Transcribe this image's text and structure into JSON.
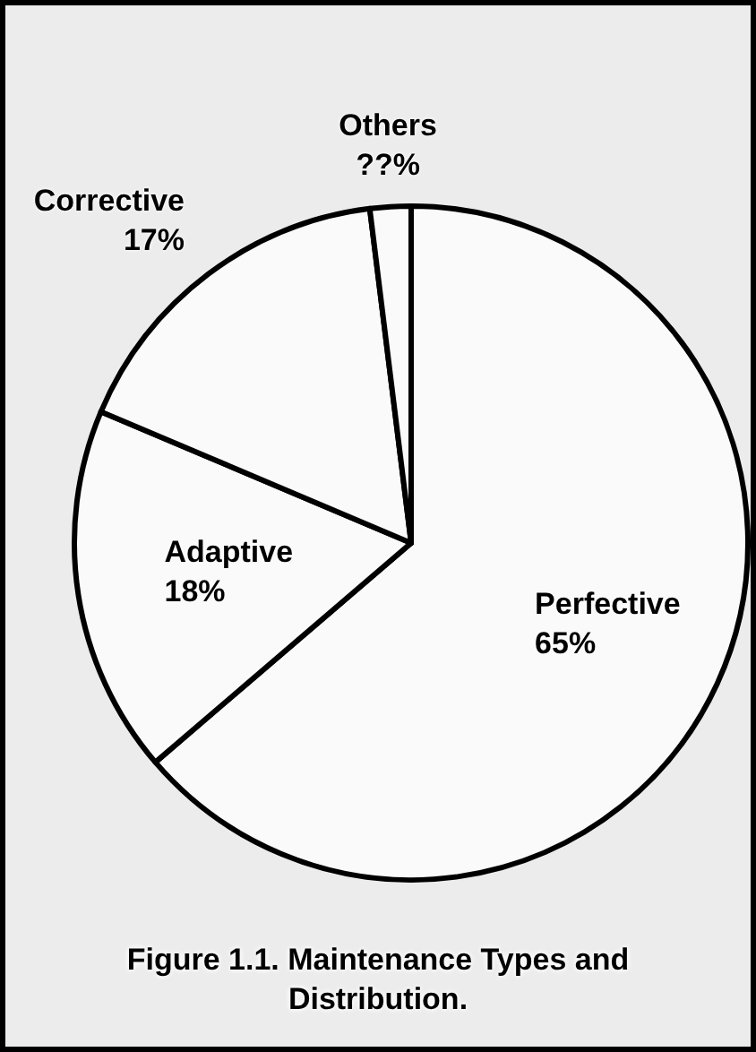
{
  "chart_data": {
    "type": "pie",
    "title": "Figure 1.1.  Maintenance Types and Distribution.",
    "categories": [
      "Perfective",
      "Adaptive",
      "Corrective",
      "Others"
    ],
    "values": [
      65,
      18,
      17,
      2
    ],
    "value_labels": [
      "65%",
      "18%",
      "17%",
      "??%"
    ],
    "colors": [
      "#fafafa",
      "#fafafa",
      "#fafafa",
      "#fafafa"
    ],
    "legend": false
  }
}
